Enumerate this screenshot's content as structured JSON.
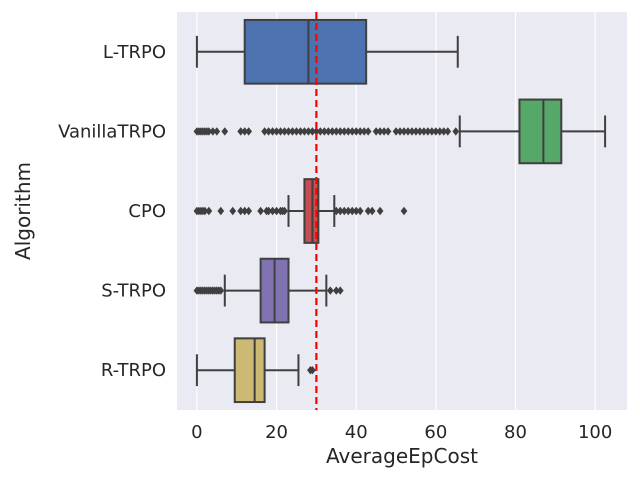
{
  "chart_data": {
    "type": "boxplot",
    "orientation": "horizontal",
    "xlabel": "AverageEpCost",
    "ylabel": "Algorithm",
    "xlim": [
      -5,
      108
    ],
    "xticks": [
      0,
      20,
      40,
      60,
      80,
      100
    ],
    "grid": true,
    "background_color": "#eaeaf2",
    "grid_color": "#ffffff",
    "reference_line": {
      "x": 30,
      "color": "#ff0000",
      "style": "dashed"
    },
    "categories": [
      "L-TRPO",
      "VanillaTRPO",
      "CPO",
      "S-TRPO",
      "R-TRPO"
    ],
    "series": [
      {
        "category": "L-TRPO",
        "color": "#4c72b0",
        "whisker_low": 0,
        "q1": 12,
        "median": 28,
        "q3": 42.5,
        "whisker_high": 65.5,
        "outliers": []
      },
      {
        "category": "VanillaTRPO",
        "color": "#55a868",
        "whisker_low": 66,
        "q1": 81,
        "median": 87,
        "q3": 91.5,
        "whisker_high": 102.5,
        "outliers": [
          0,
          0.5,
          1,
          1.5,
          2,
          2.5,
          3,
          4,
          5,
          7,
          11,
          12,
          13,
          17,
          18,
          19,
          20,
          21,
          22,
          23,
          24,
          25,
          26,
          27,
          28,
          29,
          30,
          31,
          32,
          33,
          34,
          35,
          36,
          37,
          38,
          39,
          40,
          41,
          42,
          43,
          45,
          46,
          47,
          48,
          50,
          51,
          52,
          53,
          54,
          55,
          56,
          57,
          58,
          59,
          60,
          61,
          62,
          63,
          65
        ]
      },
      {
        "category": "CPO",
        "color": "#c44e52",
        "whisker_low": 23,
        "q1": 27,
        "median": 29,
        "q3": 30.5,
        "whisker_high": 34.5,
        "outliers": [
          0,
          0.5,
          1,
          1.5,
          2,
          3,
          6,
          9,
          11,
          12,
          13,
          16,
          17.5,
          18,
          19,
          20,
          21,
          21.5,
          22,
          35,
          36,
          37,
          38,
          39,
          40,
          41,
          43,
          44,
          46,
          52
        ]
      },
      {
        "category": "S-TRPO",
        "color": "#8172b2",
        "whisker_low": 7,
        "q1": 16,
        "median": 19.5,
        "q3": 23,
        "whisker_high": 32.5,
        "outliers": [
          0,
          0.5,
          1,
          1.5,
          2,
          2.5,
          3,
          3.5,
          4,
          4.5,
          5,
          5.5,
          6,
          33.5,
          35,
          36
        ]
      },
      {
        "category": "R-TRPO",
        "color": "#ccb974",
        "whisker_low": 0,
        "q1": 9.5,
        "median": 14.5,
        "q3": 17,
        "whisker_high": 25.5,
        "outliers": [
          28.5,
          29
        ]
      }
    ]
  }
}
